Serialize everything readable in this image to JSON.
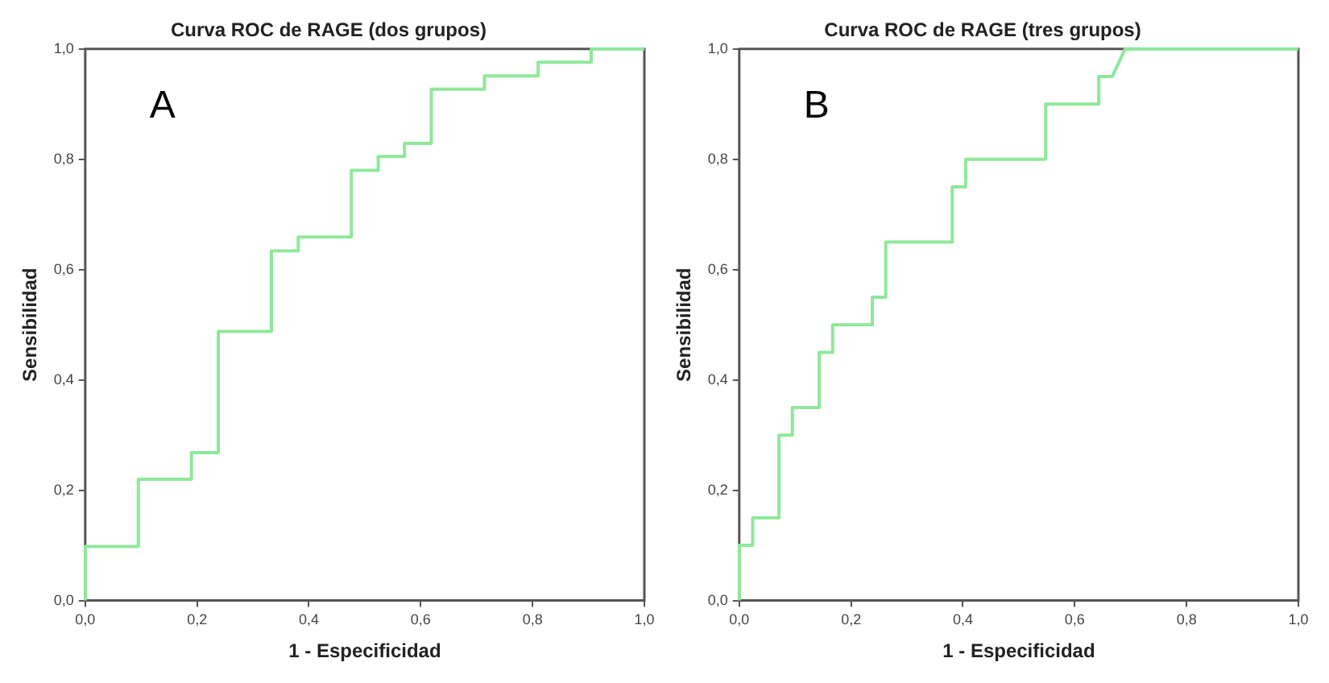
{
  "chart_data": [
    {
      "type": "line",
      "title": "Curva ROC de RAGE (dos grupos)",
      "xlabel": "1 - Especificidad",
      "ylabel": "Sensibilidad",
      "annotations": [
        "A"
      ],
      "xlim": [
        0,
        1
      ],
      "ylim": [
        0,
        1
      ],
      "xticks": [
        {
          "value": 0,
          "label": "0,0"
        },
        {
          "value": 0.2,
          "label": "0,2"
        },
        {
          "value": 0.4,
          "label": "0,4"
        },
        {
          "value": 0.6,
          "label": "0,6"
        },
        {
          "value": 0.8,
          "label": "0,8"
        },
        {
          "value": 1,
          "label": "1,0"
        }
      ],
      "yticks": [
        {
          "value": 0,
          "label": "0,0"
        },
        {
          "value": 0.2,
          "label": "0,2"
        },
        {
          "value": 0.4,
          "label": "0,4"
        },
        {
          "value": 0.6,
          "label": "0,6"
        },
        {
          "value": 0.8,
          "label": "0,8"
        },
        {
          "value": 1,
          "label": "1,0"
        }
      ],
      "grid": false,
      "legend": false,
      "marker": "none",
      "line_style": "solid",
      "series": [
        {
          "color": "#8ee89a",
          "x": [
            0,
            0,
            0.095,
            0.095,
            0.19,
            0.19,
            0.238,
            0.238,
            0.333,
            0.333,
            0.381,
            0.381,
            0.476,
            0.476,
            0.524,
            0.524,
            0.571,
            0.571,
            0.619,
            0.619,
            0.714,
            0.714,
            0.81,
            0.81,
            0.905,
            0.905,
            1
          ],
          "values": [
            0,
            0.098,
            0.098,
            0.22,
            0.22,
            0.268,
            0.268,
            0.488,
            0.488,
            0.634,
            0.634,
            0.659,
            0.659,
            0.78,
            0.78,
            0.805,
            0.805,
            0.829,
            0.829,
            0.927,
            0.927,
            0.951,
            0.951,
            0.976,
            0.976,
            1,
            1
          ]
        }
      ]
    },
    {
      "type": "line",
      "title": "Curva ROC de RAGE (tres grupos)",
      "xlabel": "1 - Especificidad",
      "ylabel": "Sensibilidad",
      "annotations": [
        "B"
      ],
      "xlim": [
        0,
        1
      ],
      "ylim": [
        0,
        1
      ],
      "xticks": [
        {
          "value": 0,
          "label": "0,0"
        },
        {
          "value": 0.2,
          "label": "0,2"
        },
        {
          "value": 0.4,
          "label": "0,4"
        },
        {
          "value": 0.6,
          "label": "0,6"
        },
        {
          "value": 0.8,
          "label": "0,8"
        },
        {
          "value": 1,
          "label": "1,0"
        }
      ],
      "yticks": [
        {
          "value": 0,
          "label": "0,0"
        },
        {
          "value": 0.2,
          "label": "0,2"
        },
        {
          "value": 0.4,
          "label": "0,4"
        },
        {
          "value": 0.6,
          "label": "0,6"
        },
        {
          "value": 0.8,
          "label": "0,8"
        },
        {
          "value": 1,
          "label": "1,0"
        }
      ],
      "grid": false,
      "legend": false,
      "marker": "none",
      "line_style": "solid",
      "series": [
        {
          "color": "#8ee89a",
          "x": [
            0,
            0,
            0.024,
            0.024,
            0.071,
            0.071,
            0.095,
            0.095,
            0.143,
            0.143,
            0.167,
            0.167,
            0.238,
            0.238,
            0.262,
            0.262,
            0.381,
            0.381,
            0.405,
            0.405,
            0.548,
            0.548,
            0.643,
            0.643,
            0.667,
            0.69,
            1
          ],
          "values": [
            0,
            0.1,
            0.1,
            0.15,
            0.15,
            0.3,
            0.3,
            0.35,
            0.35,
            0.45,
            0.45,
            0.5,
            0.5,
            0.55,
            0.55,
            0.65,
            0.65,
            0.75,
            0.75,
            0.8,
            0.8,
            0.9,
            0.9,
            0.95,
            0.95,
            1,
            1
          ]
        }
      ]
    }
  ]
}
